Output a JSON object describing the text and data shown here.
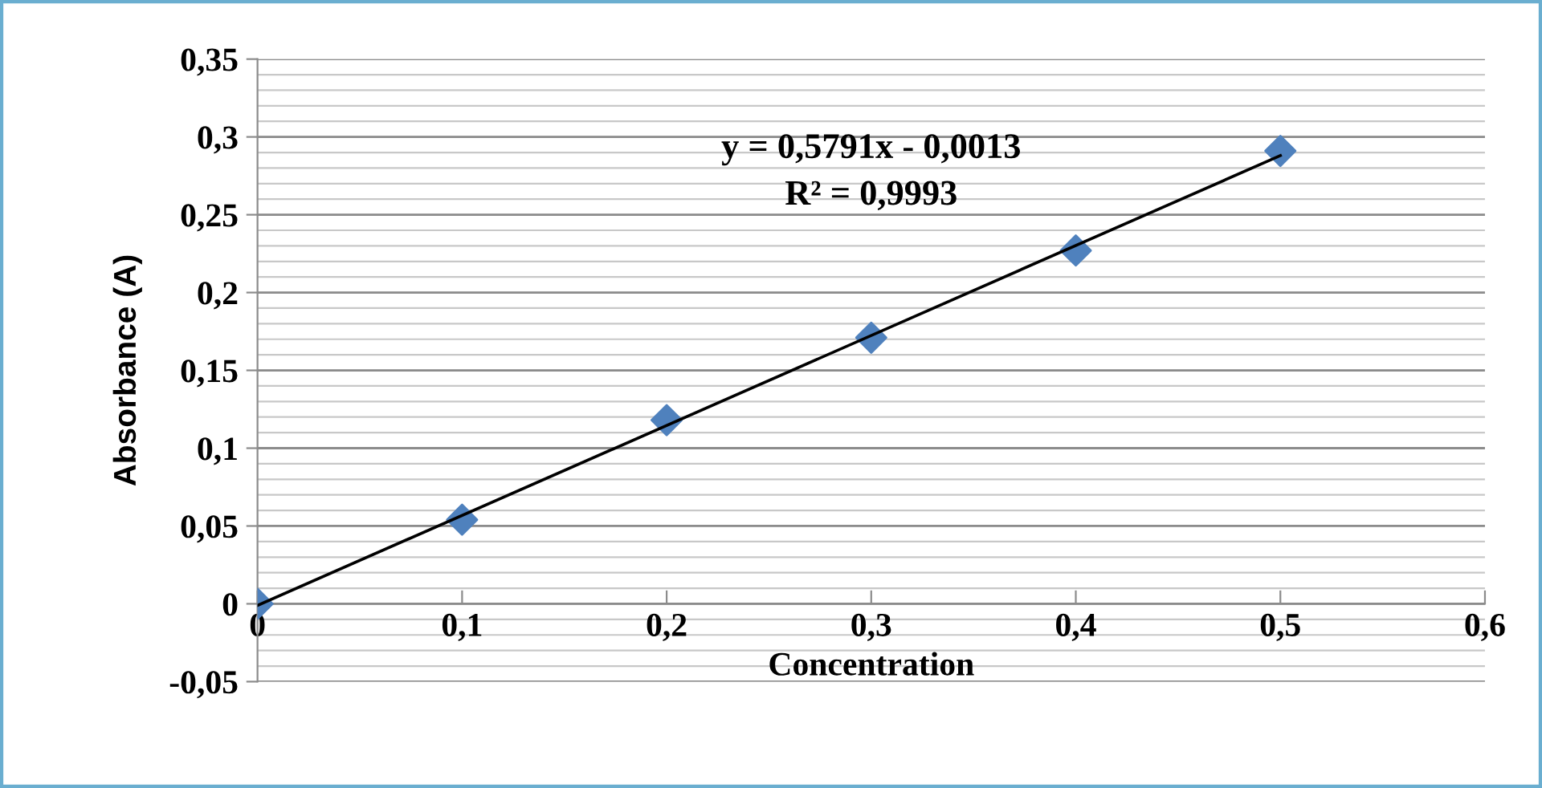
{
  "chart_data": {
    "type": "scatter",
    "xlabel": "Concentration",
    "ylabel": "Absorbance (A)",
    "annotations": [
      "y = 0,5791x - 0,0013",
      "R² = 0,9993"
    ],
    "series": [
      {
        "color": "#4f81bd",
        "marker": "diamond",
        "x": [
          0,
          0.1,
          0.2,
          0.3,
          0.4,
          0.5
        ],
        "values": [
          0,
          0.054,
          0.118,
          0.171,
          0.227,
          0.291
        ]
      },
      {
        "type": "line",
        "color": "#000000",
        "marker": "none",
        "line_style": "solid",
        "x": [
          0,
          0.5
        ],
        "values": [
          -0.001,
          0.288
        ]
      }
    ],
    "xlim": [
      0,
      0.6
    ],
    "ylim": [
      -0.05,
      0.35
    ],
    "xticks": [
      {
        "value": 0,
        "label": "0"
      },
      {
        "value": 0.1,
        "label": "0,1"
      },
      {
        "value": 0.2,
        "label": "0,2"
      },
      {
        "value": 0.3,
        "label": "0,3"
      },
      {
        "value": 0.4,
        "label": "0,4"
      },
      {
        "value": 0.5,
        "label": "0,5"
      },
      {
        "value": 0.6,
        "label": "0,6"
      }
    ],
    "yticks": [
      {
        "value": -0.05,
        "label": "-0,05"
      },
      {
        "value": 0,
        "label": "0"
      },
      {
        "value": 0.05,
        "label": "0,05"
      },
      {
        "value": 0.1,
        "label": "0,1"
      },
      {
        "value": 0.15,
        "label": "0,15"
      },
      {
        "value": 0.2,
        "label": "0,2"
      },
      {
        "value": 0.25,
        "label": "0,25"
      },
      {
        "value": 0.3,
        "label": "0,3"
      },
      {
        "value": 0.35,
        "label": "0,35"
      }
    ],
    "grid": "y",
    "legend": false
  }
}
